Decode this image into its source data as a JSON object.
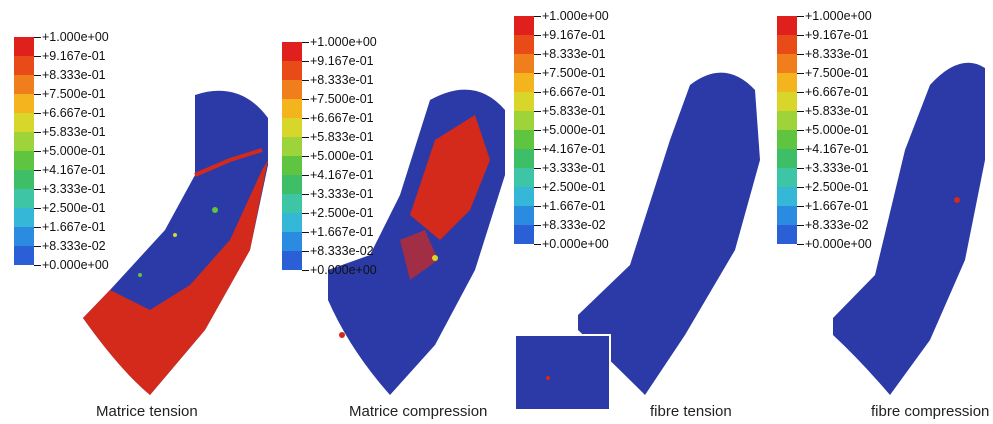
{
  "legend": {
    "labels": [
      "+1.000e+00",
      "+9.167e-01",
      "+8.333e-01",
      "+7.500e-01",
      "+6.667e-01",
      "+5.833e-01",
      "+5.000e-01",
      "+4.167e-01",
      "+3.333e-01",
      "+2.500e-01",
      "+1.667e-01",
      "+8.333e-02",
      "+0.000e+00"
    ],
    "colors": [
      "#e0201c",
      "#e84a18",
      "#f07e1c",
      "#f3b41e",
      "#d8d62a",
      "#9ed43a",
      "#5fc43f",
      "#3fbe68",
      "#3dc5a6",
      "#35b8d8",
      "#2a8be0",
      "#2a5fd6",
      "#2440b8"
    ]
  },
  "captions": {
    "p1": "Matrice tension",
    "p2": "Matrice compression",
    "p3": "fibre tension",
    "p4": "fibre compression"
  },
  "colors": {
    "mesh_blue": "#2b3aa6",
    "damage_red": "#d42a1c"
  }
}
